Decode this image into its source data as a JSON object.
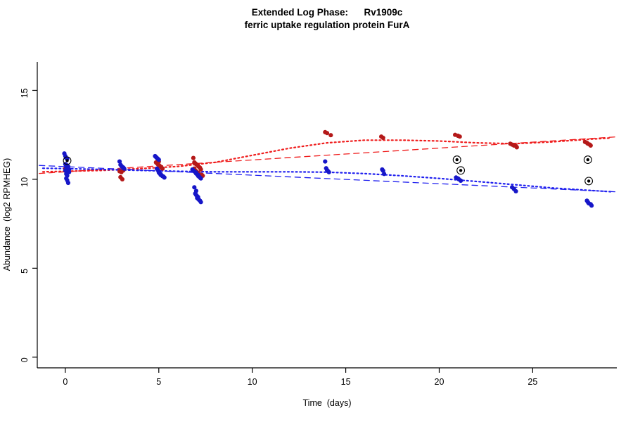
{
  "title": {
    "line1": "Extended Log Phase:      Rv1909c",
    "line2": "ferric uptake regulation protein FurA"
  },
  "chart_data": {
    "type": "scatter",
    "title": "Extended Log Phase: Rv1909c — ferric uptake regulation protein FurA",
    "xlabel": "Time  (days)",
    "ylabel": "Abundance  (log2 RPMHEG)",
    "xlim": [
      -1.5,
      29.5
    ],
    "ylim": [
      -0.6,
      16.6
    ],
    "xticks": [
      0,
      5,
      10,
      15,
      20,
      25
    ],
    "yticks": [
      0,
      5,
      10,
      15
    ],
    "grid": false,
    "legend": "none",
    "series": [
      {
        "name": "red-condition-points",
        "color": "#b41919",
        "points": [
          [
            0.0,
            10.6
          ],
          [
            0.1,
            10.55
          ],
          [
            0.15,
            10.5
          ],
          [
            0.05,
            10.42
          ],
          [
            2.9,
            10.45
          ],
          [
            2.95,
            10.12
          ],
          [
            3.0,
            10.4
          ],
          [
            3.05,
            10.0
          ],
          [
            3.1,
            10.5
          ],
          [
            4.85,
            10.95
          ],
          [
            4.9,
            10.9
          ],
          [
            4.95,
            10.85
          ],
          [
            5.0,
            11.0
          ],
          [
            5.0,
            10.8
          ],
          [
            5.05,
            10.75
          ],
          [
            5.1,
            10.7
          ],
          [
            5.15,
            10.65
          ],
          [
            5.2,
            10.6
          ],
          [
            6.85,
            11.2
          ],
          [
            6.9,
            10.95
          ],
          [
            6.9,
            10.6
          ],
          [
            6.95,
            10.9
          ],
          [
            6.95,
            10.5
          ],
          [
            7.0,
            10.85
          ],
          [
            7.0,
            10.45
          ],
          [
            7.05,
            10.8
          ],
          [
            7.05,
            10.4
          ],
          [
            7.1,
            10.75
          ],
          [
            7.1,
            10.35
          ],
          [
            7.15,
            10.7
          ],
          [
            7.15,
            10.3
          ],
          [
            7.2,
            10.65
          ],
          [
            7.25,
            10.55
          ],
          [
            7.3,
            10.25
          ],
          [
            7.35,
            10.2
          ],
          [
            13.9,
            12.65
          ],
          [
            14.0,
            12.6
          ],
          [
            14.2,
            12.48
          ],
          [
            16.9,
            12.4
          ],
          [
            17.0,
            12.33
          ],
          [
            20.85,
            12.5
          ],
          [
            21.0,
            12.45
          ],
          [
            21.1,
            12.4
          ],
          [
            23.8,
            12.0
          ],
          [
            23.9,
            11.95
          ],
          [
            24.0,
            11.9
          ],
          [
            24.1,
            11.87
          ],
          [
            24.15,
            11.8
          ],
          [
            27.8,
            12.1
          ],
          [
            27.9,
            12.05
          ],
          [
            27.95,
            12.0
          ],
          [
            28.05,
            11.95
          ],
          [
            28.1,
            11.9
          ]
        ]
      },
      {
        "name": "blue-condition-points",
        "color": "#1616c8",
        "points": [
          [
            -0.05,
            11.45
          ],
          [
            0.0,
            11.3
          ],
          [
            0.05,
            11.2
          ],
          [
            0.1,
            11.15
          ],
          [
            0.0,
            10.85
          ],
          [
            0.05,
            10.8
          ],
          [
            0.1,
            10.78
          ],
          [
            0.15,
            10.72
          ],
          [
            0.05,
            10.68
          ],
          [
            0.1,
            10.62
          ],
          [
            0.15,
            10.58
          ],
          [
            0.2,
            10.55
          ],
          [
            0.0,
            10.5
          ],
          [
            0.1,
            10.45
          ],
          [
            0.2,
            10.4
          ],
          [
            0.05,
            10.3
          ],
          [
            0.1,
            10.2
          ],
          [
            0.05,
            10.05
          ],
          [
            0.1,
            9.95
          ],
          [
            0.15,
            9.8
          ],
          [
            2.9,
            11.0
          ],
          [
            2.95,
            10.82
          ],
          [
            3.0,
            10.75
          ],
          [
            3.05,
            10.7
          ],
          [
            3.1,
            10.66
          ],
          [
            3.15,
            10.6
          ],
          [
            4.8,
            11.3
          ],
          [
            4.85,
            11.25
          ],
          [
            4.9,
            11.2
          ],
          [
            4.95,
            11.15
          ],
          [
            5.0,
            11.1
          ],
          [
            4.9,
            10.6
          ],
          [
            4.95,
            10.52
          ],
          [
            5.0,
            10.45
          ],
          [
            5.0,
            10.38
          ],
          [
            5.05,
            10.33
          ],
          [
            5.1,
            10.3
          ],
          [
            5.1,
            10.25
          ],
          [
            5.15,
            10.22
          ],
          [
            5.2,
            10.18
          ],
          [
            5.25,
            10.15
          ],
          [
            5.3,
            10.1
          ],
          [
            6.8,
            10.55
          ],
          [
            6.85,
            10.5
          ],
          [
            6.9,
            10.45
          ],
          [
            6.95,
            10.4
          ],
          [
            7.0,
            10.38
          ],
          [
            7.0,
            10.32
          ],
          [
            7.05,
            10.28
          ],
          [
            7.1,
            10.25
          ],
          [
            7.1,
            10.2
          ],
          [
            7.15,
            10.15
          ],
          [
            7.2,
            10.1
          ],
          [
            7.25,
            10.05
          ],
          [
            6.9,
            9.55
          ],
          [
            7.0,
            9.35
          ],
          [
            6.95,
            9.2
          ],
          [
            7.0,
            9.12
          ],
          [
            7.05,
            9.05
          ],
          [
            7.1,
            9.0
          ],
          [
            7.05,
            8.95
          ],
          [
            7.1,
            8.9
          ],
          [
            7.15,
            8.85
          ],
          [
            7.2,
            8.8
          ],
          [
            7.25,
            8.72
          ],
          [
            13.9,
            11.0
          ],
          [
            13.95,
            10.62
          ],
          [
            14.0,
            10.52
          ],
          [
            14.05,
            10.46
          ],
          [
            14.1,
            10.4
          ],
          [
            16.95,
            10.55
          ],
          [
            17.0,
            10.48
          ],
          [
            17.05,
            10.3
          ],
          [
            20.9,
            10.1
          ],
          [
            21.0,
            10.05
          ],
          [
            21.05,
            10.0
          ],
          [
            21.15,
            9.92
          ],
          [
            23.9,
            9.55
          ],
          [
            24.0,
            9.45
          ],
          [
            24.1,
            9.33
          ],
          [
            27.9,
            8.8
          ],
          [
            27.95,
            8.72
          ],
          [
            28.0,
            8.65
          ],
          [
            28.1,
            8.6
          ],
          [
            28.15,
            8.52
          ]
        ]
      }
    ],
    "flagged": {
      "name": "circled-outlier-points",
      "color": "#000000",
      "points": [
        [
          0.1,
          11.05
        ],
        [
          20.95,
          11.1
        ],
        [
          21.15,
          10.5
        ],
        [
          27.95,
          11.1
        ],
        [
          28.0,
          9.9
        ]
      ]
    },
    "lines": [
      {
        "name": "red-loess-fit",
        "color": "#ef1c1c",
        "dash": "2 3.8",
        "width": 2.2,
        "points": [
          [
            -1.2,
            10.42
          ],
          [
            0,
            10.45
          ],
          [
            2,
            10.5
          ],
          [
            4,
            10.6
          ],
          [
            6,
            10.72
          ],
          [
            8,
            10.95
          ],
          [
            10,
            11.35
          ],
          [
            12,
            11.75
          ],
          [
            14,
            12.05
          ],
          [
            16,
            12.2
          ],
          [
            18,
            12.2
          ],
          [
            20,
            12.15
          ],
          [
            22,
            12.05
          ],
          [
            24,
            12.0
          ],
          [
            26,
            12.1
          ],
          [
            28,
            12.25
          ],
          [
            29.2,
            12.32
          ]
        ]
      },
      {
        "name": "red-linear-fit",
        "color": "#ef1c1c",
        "dash": "8 6",
        "width": 1.3,
        "points": [
          [
            -1.4,
            10.33
          ],
          [
            29.4,
            12.38
          ]
        ]
      },
      {
        "name": "blue-loess-fit",
        "color": "#2020ef",
        "dash": "2 3.8",
        "width": 2.2,
        "points": [
          [
            -1.2,
            10.62
          ],
          [
            0,
            10.6
          ],
          [
            2,
            10.55
          ],
          [
            4,
            10.5
          ],
          [
            6,
            10.45
          ],
          [
            8,
            10.42
          ],
          [
            10,
            10.42
          ],
          [
            12,
            10.42
          ],
          [
            14,
            10.4
          ],
          [
            16,
            10.32
          ],
          [
            18,
            10.2
          ],
          [
            20,
            10.05
          ],
          [
            22,
            9.88
          ],
          [
            24,
            9.7
          ],
          [
            26,
            9.52
          ],
          [
            28,
            9.38
          ],
          [
            29.2,
            9.3
          ]
        ]
      },
      {
        "name": "blue-linear-fit",
        "color": "#2020ef",
        "dash": "8 6",
        "width": 1.3,
        "points": [
          [
            -1.4,
            10.78
          ],
          [
            29.4,
            9.3
          ]
        ]
      }
    ]
  }
}
